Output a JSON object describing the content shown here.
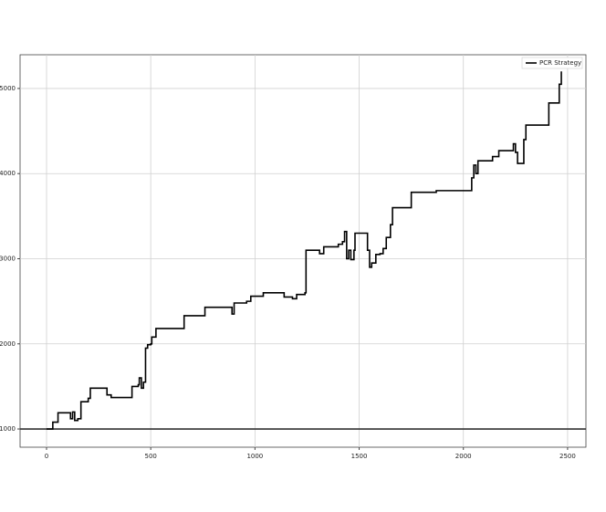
{
  "chart_data": {
    "type": "line",
    "drawstyle": "steps-post",
    "x": [
      0,
      25,
      30,
      55,
      110,
      115,
      125,
      135,
      150,
      165,
      200,
      210,
      270,
      290,
      310,
      400,
      410,
      440,
      445,
      455,
      465,
      475,
      485,
      500,
      505,
      525,
      640,
      660,
      750,
      760,
      880,
      890,
      900,
      960,
      980,
      1040,
      1120,
      1140,
      1180,
      1200,
      1240,
      1245,
      1300,
      1310,
      1330,
      1400,
      1420,
      1430,
      1440,
      1450,
      1460,
      1475,
      1480,
      1530,
      1540,
      1550,
      1560,
      1580,
      1600,
      1615,
      1630,
      1650,
      1660,
      1740,
      1750,
      1860,
      1870,
      2030,
      2040,
      2050,
      2060,
      2070,
      2130,
      2140,
      2170,
      2220,
      2240,
      2250,
      2260,
      2280,
      2290,
      2300,
      2400,
      2410,
      2450,
      2460,
      2470
    ],
    "series": [
      {
        "name": "PCR Strategy",
        "color": "#000000",
        "values": [
          1000,
          1000,
          1080,
          1190,
          1190,
          1120,
          1200,
          1100,
          1120,
          1320,
          1360,
          1480,
          1480,
          1400,
          1370,
          1370,
          1500,
          1520,
          1600,
          1480,
          1550,
          1950,
          1990,
          2000,
          2080,
          2180,
          2180,
          2330,
          2330,
          2430,
          2430,
          2350,
          2480,
          2500,
          2560,
          2600,
          2600,
          2550,
          2530,
          2580,
          2600,
          3100,
          3100,
          3060,
          3140,
          3170,
          3200,
          3320,
          3000,
          3100,
          2990,
          3100,
          3300,
          3300,
          3100,
          2900,
          2950,
          3050,
          3060,
          3120,
          3250,
          3400,
          3600,
          3600,
          3780,
          3780,
          3800,
          3800,
          3950,
          4100,
          4000,
          4150,
          4150,
          4200,
          4270,
          4270,
          4350,
          4250,
          4120,
          4120,
          4400,
          4570,
          4570,
          4830,
          4830,
          5050,
          5200
        ]
      }
    ],
    "hlines": [
      1000
    ],
    "hline_color": "#333333",
    "xlim": [
      -127,
      2588
    ],
    "ylim": [
      786,
      5396
    ],
    "xticks": [
      0,
      500,
      1000,
      1500,
      2000,
      2500
    ],
    "yticks": [
      1000,
      2000,
      3000,
      4000,
      5000
    ],
    "grid": true,
    "legend": "upper right"
  }
}
